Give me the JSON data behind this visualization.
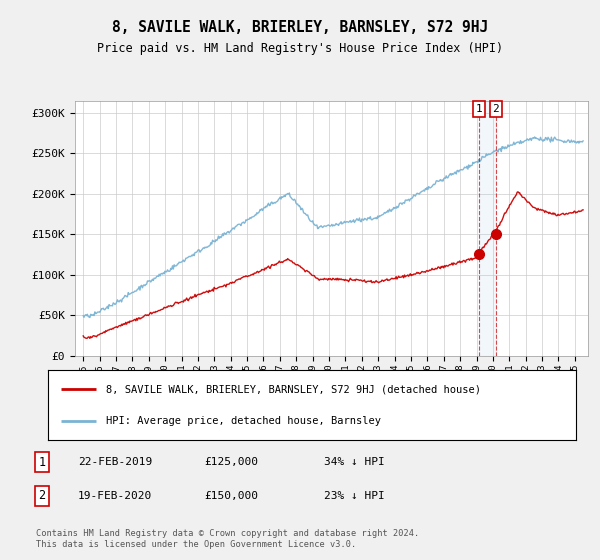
{
  "title": "8, SAVILE WALK, BRIERLEY, BARNSLEY, S72 9HJ",
  "subtitle": "Price paid vs. HM Land Registry's House Price Index (HPI)",
  "ylabel_ticks": [
    "£0",
    "£50K",
    "£100K",
    "£150K",
    "£200K",
    "£250K",
    "£300K"
  ],
  "ytick_values": [
    0,
    50000,
    100000,
    150000,
    200000,
    250000,
    300000
  ],
  "ylim": [
    0,
    315000
  ],
  "hpi_color": "#7ab3d4",
  "price_color": "#cc0000",
  "sale1_year": 2019.12,
  "sale2_year": 2020.12,
  "marker1_price": 125000,
  "marker2_price": 150000,
  "legend_label1": "8, SAVILE WALK, BRIERLEY, BARNSLEY, S72 9HJ (detached house)",
  "legend_label2": "HPI: Average price, detached house, Barnsley",
  "note1_num": "1",
  "note1_date": "22-FEB-2019",
  "note1_price": "£125,000",
  "note1_hpi": "34% ↓ HPI",
  "note2_num": "2",
  "note2_date": "19-FEB-2020",
  "note2_price": "£150,000",
  "note2_hpi": "23% ↓ HPI",
  "footer": "Contains HM Land Registry data © Crown copyright and database right 2024.\nThis data is licensed under the Open Government Licence v3.0.",
  "background_color": "#f0f0f0",
  "plot_bg_color": "#ffffff"
}
